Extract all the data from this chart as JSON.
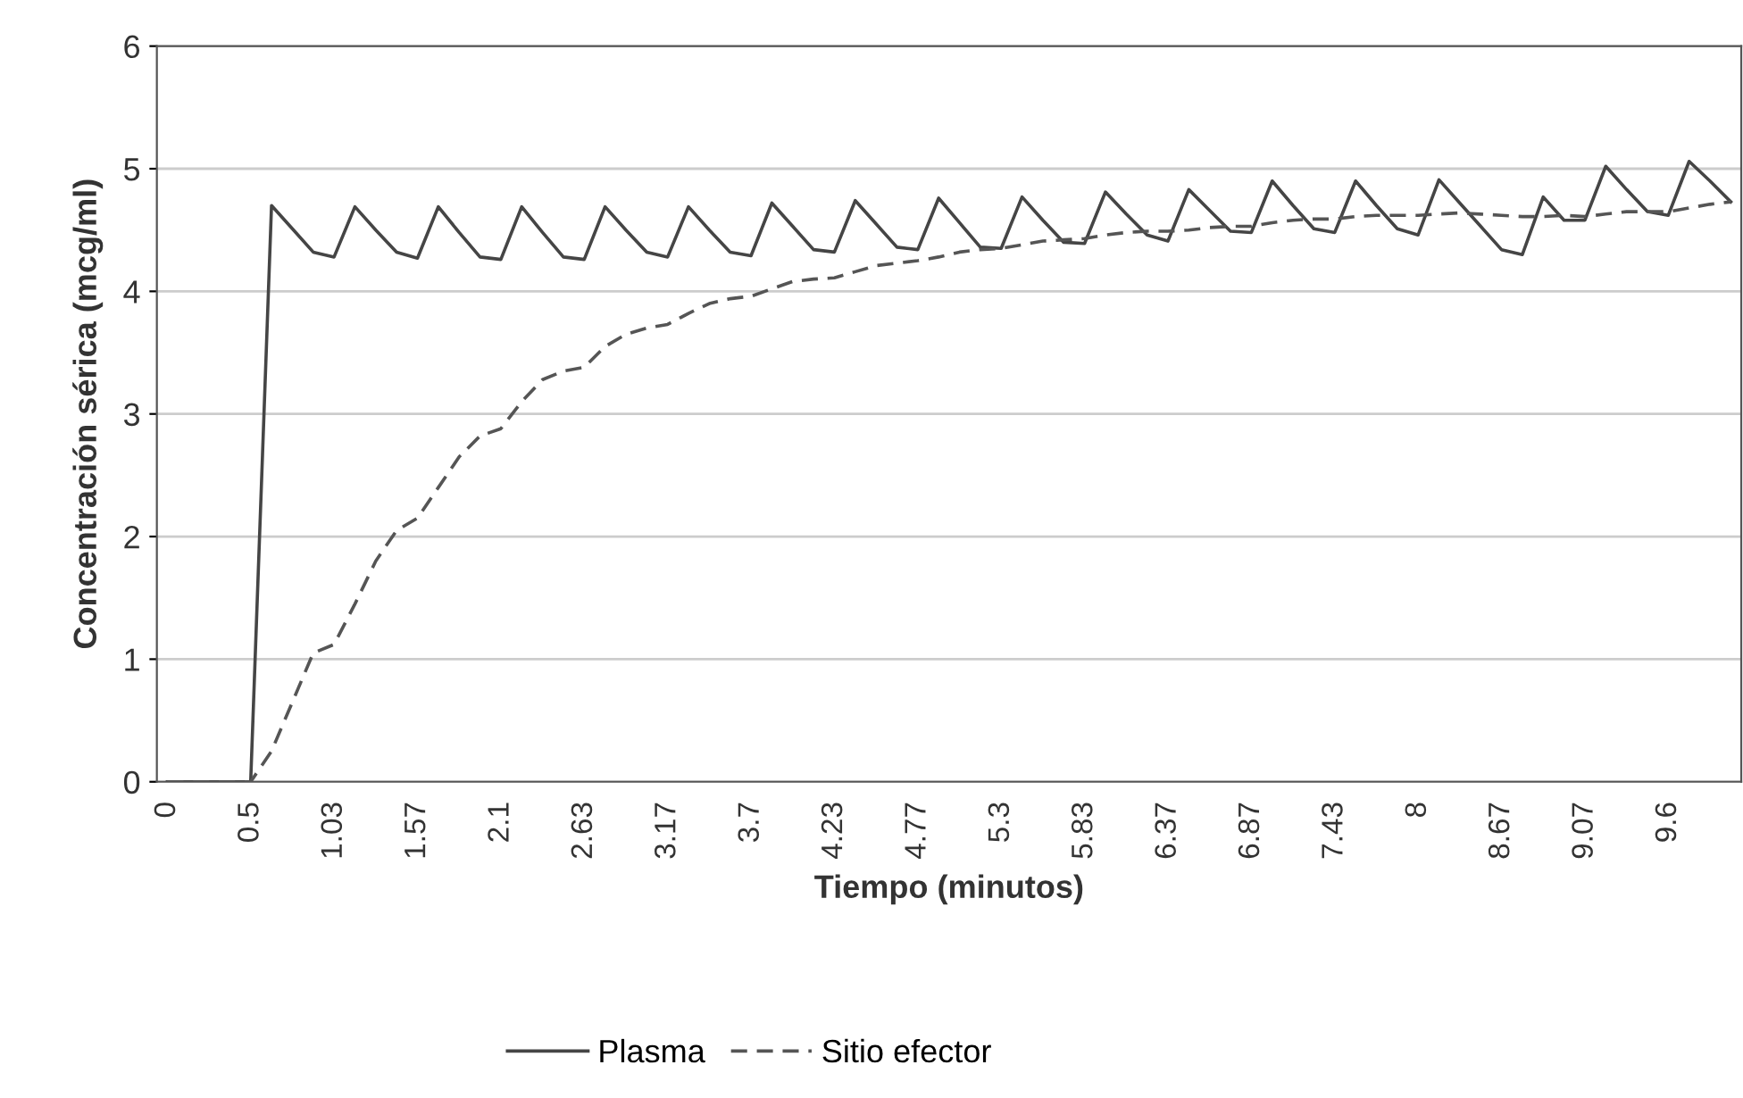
{
  "chart_data": {
    "type": "line",
    "xlabel": "Tiempo (minutos)",
    "ylabel": "Concentración sérica (mcg/ml)",
    "categories": [
      "0",
      null,
      null,
      null,
      "0.5",
      null,
      null,
      null,
      "1.03",
      null,
      null,
      null,
      "1.57",
      null,
      null,
      null,
      "2.1",
      null,
      null,
      null,
      "2.63",
      null,
      null,
      null,
      "3.17",
      null,
      null,
      null,
      "3.7",
      null,
      null,
      null,
      "4.23",
      null,
      null,
      null,
      "4.77",
      null,
      null,
      null,
      "5.3",
      null,
      null,
      null,
      "5.83",
      null,
      null,
      null,
      "6.37",
      null,
      null,
      null,
      "6.87",
      null,
      null,
      null,
      "7.43",
      null,
      null,
      null,
      "8",
      null,
      null,
      null,
      "8.67",
      null,
      null,
      null,
      "9.07",
      null,
      null,
      null,
      "9.6",
      null,
      null,
      null
    ],
    "series": [
      {
        "name": "Plasma",
        "color": "#454545",
        "line_style": "solid",
        "values": [
          0,
          0,
          0,
          0,
          0,
          4.7,
          4.51,
          4.32,
          4.28,
          4.69,
          4.5,
          4.32,
          4.27,
          4.69,
          4.48,
          4.28,
          4.26,
          4.69,
          4.48,
          4.28,
          4.26,
          4.69,
          4.5,
          4.32,
          4.28,
          4.69,
          4.5,
          4.32,
          4.29,
          4.72,
          4.53,
          4.34,
          4.32,
          4.74,
          4.55,
          4.36,
          4.34,
          4.76,
          4.56,
          4.36,
          4.35,
          4.77,
          4.58,
          4.4,
          4.39,
          4.81,
          4.63,
          4.46,
          4.41,
          4.83,
          4.66,
          4.49,
          4.48,
          4.9,
          4.7,
          4.51,
          4.48,
          4.9,
          4.7,
          4.51,
          4.46,
          4.91,
          4.72,
          4.53,
          4.34,
          4.3,
          4.77,
          4.58,
          4.58,
          5.02,
          4.83,
          4.65,
          4.62,
          5.06,
          4.9,
          4.73
        ]
      },
      {
        "name": "Sitio efector",
        "color": "#555555",
        "line_style": "dashed",
        "values": [
          0,
          0,
          0,
          0,
          0,
          0.25,
          0.65,
          1.05,
          1.12,
          1.45,
          1.8,
          2.05,
          2.15,
          2.4,
          2.65,
          2.82,
          2.88,
          3.1,
          3.28,
          3.35,
          3.38,
          3.55,
          3.65,
          3.7,
          3.73,
          3.82,
          3.9,
          3.94,
          3.96,
          4.02,
          4.08,
          4.1,
          4.11,
          4.16,
          4.21,
          4.23,
          4.25,
          4.28,
          4.32,
          4.34,
          4.35,
          4.38,
          4.41,
          4.42,
          4.43,
          4.46,
          4.48,
          4.49,
          4.49,
          4.5,
          4.52,
          4.53,
          4.53,
          4.56,
          4.58,
          4.59,
          4.59,
          4.61,
          4.62,
          4.62,
          4.62,
          4.63,
          4.64,
          4.63,
          4.62,
          4.61,
          4.61,
          4.62,
          4.61,
          4.63,
          4.65,
          4.65,
          4.65,
          4.68,
          4.71,
          4.73
        ]
      }
    ],
    "ylim": [
      0,
      6
    ],
    "yticks": [
      0,
      1,
      2,
      3,
      4,
      5,
      6
    ],
    "grid": "y",
    "legend": "bottom",
    "marker": "none"
  }
}
